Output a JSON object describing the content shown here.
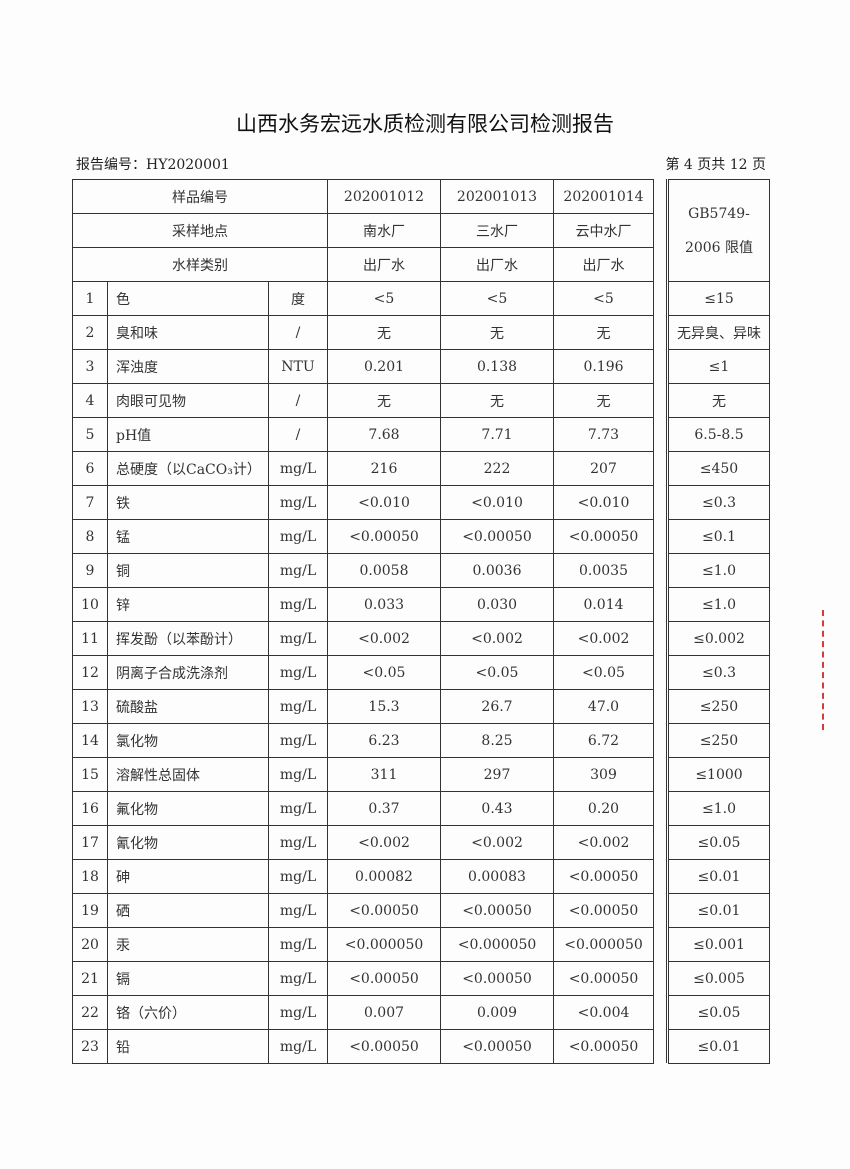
{
  "title": "山西水务宏远水质检测有限公司检测报告",
  "report_no": "报告编号：HY2020001",
  "page_info": "第 4 页共 12 页",
  "header": {
    "sample_no_label": "样品编号",
    "location_label": "采样地点",
    "type_label": "水样类别",
    "limit_label_1": "GB5749-",
    "limit_label_2": "2006 限值",
    "samples": [
      {
        "id": "202001012",
        "location": "南水厂",
        "type": "出厂水"
      },
      {
        "id": "202001013",
        "location": "三水厂",
        "type": "出厂水"
      },
      {
        "id": "202001014",
        "location": "云中水厂",
        "type": "出厂水"
      }
    ]
  },
  "rows": [
    {
      "no": "1",
      "item": "色",
      "unit": "度",
      "v1": "<5",
      "v2": "<5",
      "v3": "<5",
      "limit": "≤15"
    },
    {
      "no": "2",
      "item": "臭和味",
      "unit": "/",
      "v1": "无",
      "v2": "无",
      "v3": "无",
      "limit": "无异臭、异味"
    },
    {
      "no": "3",
      "item": "浑浊度",
      "unit": "NTU",
      "v1": "0.201",
      "v2": "0.138",
      "v3": "0.196",
      "limit": "≤1"
    },
    {
      "no": "4",
      "item": "肉眼可见物",
      "unit": "/",
      "v1": "无",
      "v2": "无",
      "v3": "无",
      "limit": "无"
    },
    {
      "no": "5",
      "item": "pH值",
      "unit": "/",
      "v1": "7.68",
      "v2": "7.71",
      "v3": "7.73",
      "limit": "6.5-8.5"
    },
    {
      "no": "6",
      "item": "总硬度（以CaCO₃计）",
      "unit": "mg/L",
      "v1": "216",
      "v2": "222",
      "v3": "207",
      "limit": "≤450"
    },
    {
      "no": "7",
      "item": "铁",
      "unit": "mg/L",
      "v1": "<0.010",
      "v2": "<0.010",
      "v3": "<0.010",
      "limit": "≤0.3"
    },
    {
      "no": "8",
      "item": "锰",
      "unit": "mg/L",
      "v1": "<0.00050",
      "v2": "<0.00050",
      "v3": "<0.00050",
      "limit": "≤0.1"
    },
    {
      "no": "9",
      "item": "铜",
      "unit": "mg/L",
      "v1": "0.0058",
      "v2": "0.0036",
      "v3": "0.0035",
      "limit": "≤1.0"
    },
    {
      "no": "10",
      "item": "锌",
      "unit": "mg/L",
      "v1": "0.033",
      "v2": "0.030",
      "v3": "0.014",
      "limit": "≤1.0"
    },
    {
      "no": "11",
      "item": "挥发酚（以苯酚计）",
      "unit": "mg/L",
      "v1": "<0.002",
      "v2": "<0.002",
      "v3": "<0.002",
      "limit": "≤0.002"
    },
    {
      "no": "12",
      "item": "阴离子合成洗涤剂",
      "unit": "mg/L",
      "v1": "<0.05",
      "v2": "<0.05",
      "v3": "<0.05",
      "limit": "≤0.3"
    },
    {
      "no": "13",
      "item": "硫酸盐",
      "unit": "mg/L",
      "v1": "15.3",
      "v2": "26.7",
      "v3": "47.0",
      "limit": "≤250"
    },
    {
      "no": "14",
      "item": "氯化物",
      "unit": "mg/L",
      "v1": "6.23",
      "v2": "8.25",
      "v3": "6.72",
      "limit": "≤250"
    },
    {
      "no": "15",
      "item": "溶解性总固体",
      "unit": "mg/L",
      "v1": "311",
      "v2": "297",
      "v3": "309",
      "limit": "≤1000"
    },
    {
      "no": "16",
      "item": "氟化物",
      "unit": "mg/L",
      "v1": "0.37",
      "v2": "0.43",
      "v3": "0.20",
      "limit": "≤1.0"
    },
    {
      "no": "17",
      "item": "氰化物",
      "unit": "mg/L",
      "v1": "<0.002",
      "v2": "<0.002",
      "v3": "<0.002",
      "limit": "≤0.05"
    },
    {
      "no": "18",
      "item": "砷",
      "unit": "mg/L",
      "v1": "0.00082",
      "v2": "0.00083",
      "v3": "<0.00050",
      "limit": "≤0.01"
    },
    {
      "no": "19",
      "item": "硒",
      "unit": "mg/L",
      "v1": "<0.00050",
      "v2": "<0.00050",
      "v3": "<0.00050",
      "limit": "≤0.01"
    },
    {
      "no": "20",
      "item": "汞",
      "unit": "mg/L",
      "v1": "<0.000050",
      "v2": "<0.000050",
      "v3": "<0.000050",
      "limit": "≤0.001"
    },
    {
      "no": "21",
      "item": "镉",
      "unit": "mg/L",
      "v1": "<0.00050",
      "v2": "<0.00050",
      "v3": "<0.00050",
      "limit": "≤0.005"
    },
    {
      "no": "22",
      "item": "铬（六价）",
      "unit": "mg/L",
      "v1": "0.007",
      "v2": "0.009",
      "v3": "<0.004",
      "limit": "≤0.05"
    },
    {
      "no": "23",
      "item": "铅",
      "unit": "mg/L",
      "v1": "<0.00050",
      "v2": "<0.00050",
      "v3": "<0.00050",
      "limit": "≤0.01"
    }
  ],
  "stamp_color": "#d23c3c"
}
